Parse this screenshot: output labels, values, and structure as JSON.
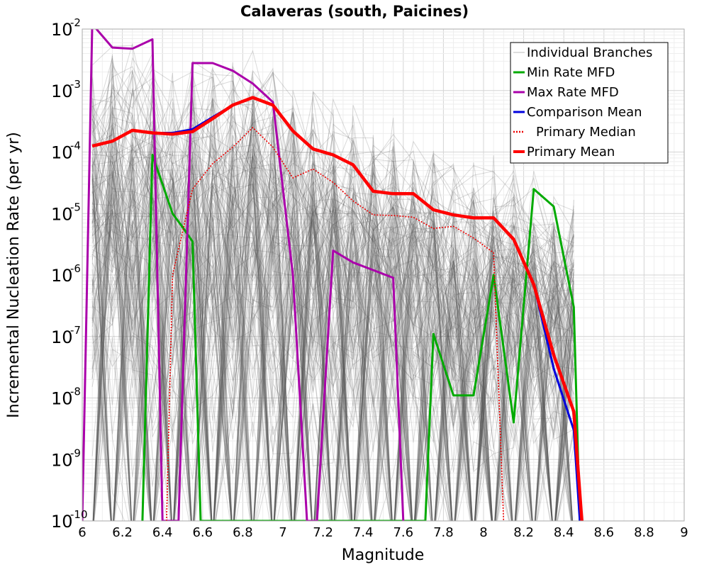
{
  "chart_data": {
    "type": "line",
    "title": "Calaveras (south, Paicines)",
    "xlabel": "Magnitude",
    "ylabel": "Incremental Nucleation Rate (per yr)",
    "xlim": [
      6,
      9
    ],
    "ylim": [
      1e-10,
      0.01
    ],
    "yscale": "log",
    "grid": true,
    "legend_position": "top-right",
    "x_ticks": [
      "6",
      "6.2",
      "6.4",
      "6.6",
      "6.8",
      "7",
      "7.2",
      "7.4",
      "7.6",
      "7.8",
      "8",
      "8.2",
      "8.4",
      "8.6",
      "8.8",
      "9"
    ],
    "y_ticks": [
      {
        "base": "10",
        "exp": "-10"
      },
      {
        "base": "10",
        "exp": "-9"
      },
      {
        "base": "10",
        "exp": "-8"
      },
      {
        "base": "10",
        "exp": "-7"
      },
      {
        "base": "10",
        "exp": "-6"
      },
      {
        "base": "10",
        "exp": "-5"
      },
      {
        "base": "10",
        "exp": "-4"
      },
      {
        "base": "10",
        "exp": "-3"
      },
      {
        "base": "10",
        "exp": "-2"
      }
    ],
    "series": [
      {
        "name": "Individual Branches",
        "color": "#555555",
        "style": "thin-band",
        "x": [
          6.05,
          6.15,
          6.25,
          6.35,
          6.45,
          6.55,
          6.65,
          6.75,
          6.85,
          6.95,
          7.05,
          7.15,
          7.25,
          7.35,
          7.45,
          7.55,
          7.65,
          7.75,
          7.85,
          7.95,
          8.05,
          8.15,
          8.25,
          8.35,
          8.45
        ],
        "upper": [
          0.01,
          0.01,
          0.008,
          0.008,
          0.005,
          0.006,
          0.005,
          0.004,
          0.008,
          0.008,
          0.003,
          0.0015,
          0.001,
          0.0008,
          0.0006,
          0.0005,
          0.0003,
          0.0002,
          0.0001,
          0.0001,
          0.0001,
          8e-05,
          5e-05,
          3e-05,
          2e-05
        ],
        "lower": [
          1e-10,
          1e-10,
          1e-10,
          1e-10,
          1e-10,
          1e-10,
          1e-10,
          1e-10,
          1e-10,
          1e-10,
          1e-10,
          1e-10,
          1e-10,
          1e-10,
          1e-10,
          1e-10,
          1e-10,
          1e-10,
          1e-10,
          1e-10,
          1e-10,
          1e-10,
          1e-10,
          1e-10,
          1e-10
        ]
      },
      {
        "name": "Min Rate MFD",
        "color": "#00aa00",
        "x": [
          6.3,
          6.35,
          6.4,
          6.45,
          6.5,
          6.55,
          6.59,
          7.71,
          7.75,
          7.85,
          7.95,
          8.05,
          8.15,
          8.25,
          8.35,
          8.45,
          8.48
        ],
        "values": [
          1e-10,
          9e-05,
          3e-05,
          1e-05,
          6e-06,
          3.5e-06,
          1e-10,
          1e-10,
          1.1e-07,
          1.1e-08,
          1.1e-08,
          1e-06,
          4e-09,
          2.5e-05,
          1.3e-05,
          3e-07,
          1e-10
        ]
      },
      {
        "name": "Max Rate MFD",
        "color": "#aa00aa",
        "x": [
          6.0,
          6.05,
          6.15,
          6.25,
          6.35,
          6.4,
          6.44,
          6.48,
          6.55,
          6.65,
          6.75,
          6.85,
          6.95,
          7.05,
          7.12,
          7.17,
          7.25,
          7.35,
          7.45,
          7.55,
          7.6
        ],
        "values": [
          1e-10,
          0.012,
          0.005,
          0.0048,
          0.0068,
          1e-10,
          1e-10,
          1e-10,
          0.0028,
          0.0028,
          0.0021,
          0.0013,
          0.00065,
          1e-06,
          1e-10,
          1e-10,
          2.5e-06,
          1.6e-06,
          1.2e-06,
          9e-07,
          1e-10
        ]
      },
      {
        "name": "Comparison Mean",
        "color": "#0000dd",
        "x": [
          6.05,
          6.15,
          6.25,
          6.35,
          6.45,
          6.55,
          6.65,
          6.75,
          6.85,
          6.95,
          7.05,
          7.15,
          7.25,
          7.35,
          7.45,
          7.55,
          7.65,
          7.75,
          7.85,
          7.95,
          8.05,
          8.15,
          8.25,
          8.35,
          8.45,
          8.48
        ],
        "values": [
          0.000125,
          0.00015,
          0.000225,
          0.000205,
          0.000205,
          0.000235,
          0.00037,
          0.00058,
          0.00077,
          0.00058,
          0.00022,
          0.000112,
          9e-05,
          6.2e-05,
          2.3e-05,
          2.1e-05,
          2.1e-05,
          1.15e-05,
          9.5e-06,
          8.5e-06,
          8.5e-06,
          3.8e-06,
          7e-07,
          3e-08,
          3e-09,
          1e-10
        ]
      },
      {
        "name": "Primary Median",
        "color": "#ee0000",
        "style": "dotted",
        "x": [
          6.42,
          6.45,
          6.55,
          6.65,
          6.75,
          6.85,
          6.95,
          7.05,
          7.15,
          7.25,
          7.35,
          7.45,
          7.55,
          7.65,
          7.75,
          7.85,
          7.95,
          8.05,
          8.1
        ],
        "values": [
          1e-10,
          1e-06,
          2.5e-05,
          6.5e-05,
          0.00012,
          0.00025,
          0.00012,
          3.8e-05,
          5.3e-05,
          3.2e-05,
          1.6e-05,
          9.5e-06,
          9.3e-06,
          8.7e-06,
          5.7e-06,
          6.2e-06,
          4e-06,
          2.3e-06,
          1e-10
        ]
      },
      {
        "name": "Primary Mean",
        "color": "#ff0000",
        "x": [
          6.05,
          6.15,
          6.25,
          6.35,
          6.45,
          6.55,
          6.65,
          6.75,
          6.85,
          6.95,
          7.05,
          7.15,
          7.25,
          7.35,
          7.45,
          7.55,
          7.65,
          7.75,
          7.85,
          7.95,
          8.05,
          8.15,
          8.25,
          8.35,
          8.45,
          8.49
        ],
        "values": [
          0.000125,
          0.00015,
          0.000225,
          0.000205,
          0.000195,
          0.000215,
          0.00035,
          0.00058,
          0.00077,
          0.00058,
          0.00022,
          0.000112,
          9e-05,
          6.2e-05,
          2.3e-05,
          2.1e-05,
          2.1e-05,
          1.15e-05,
          9.5e-06,
          8.5e-06,
          8.5e-06,
          3.8e-06,
          7e-07,
          5e-08,
          6e-09,
          1e-10
        ]
      }
    ]
  }
}
